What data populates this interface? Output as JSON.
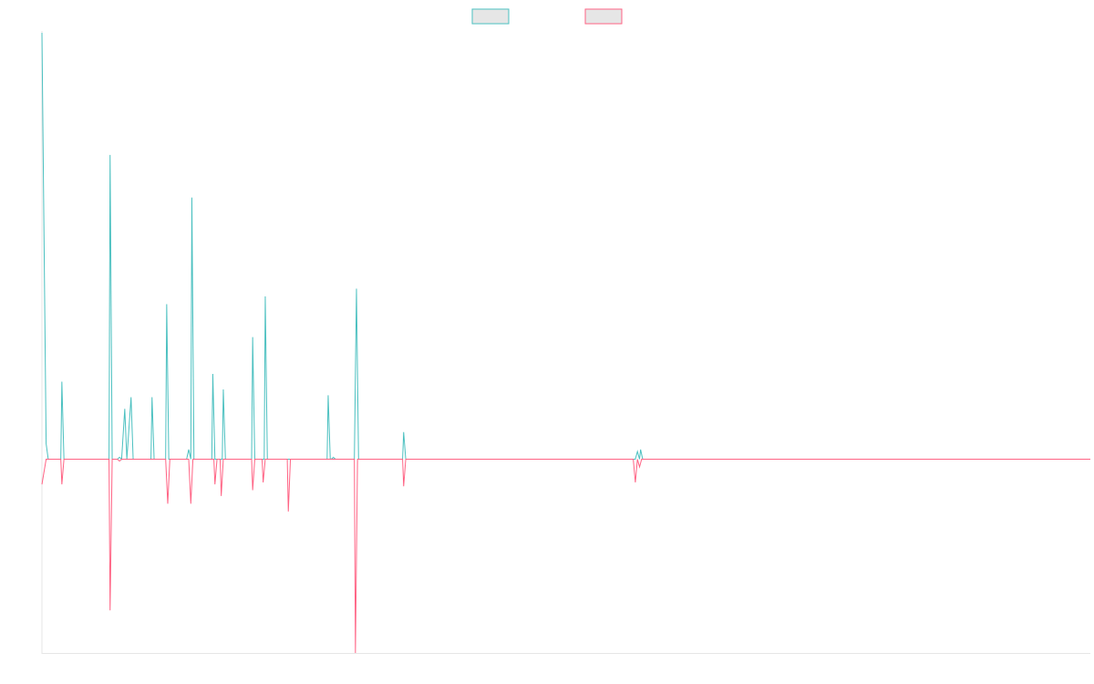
{
  "chart_data": {
    "type": "line",
    "title": "",
    "xlabel": "",
    "ylabel": "",
    "x_range": [
      0,
      500
    ],
    "ylim": [
      -100,
      220
    ],
    "grid": false,
    "legend_placement": "top-center",
    "series": [
      {
        "color": "#4bc0c0",
        "fill": "#e6e6e6",
        "points": [
          [
            0,
            220
          ],
          [
            2,
            8
          ],
          [
            3,
            0
          ],
          [
            9,
            0
          ],
          [
            9.5,
            40
          ],
          [
            10.5,
            0
          ],
          [
            32,
            0
          ],
          [
            32.5,
            157
          ],
          [
            33.5,
            0
          ],
          [
            36,
            0
          ],
          [
            37,
            1
          ],
          [
            38,
            0
          ],
          [
            39.5,
            26
          ],
          [
            40.5,
            0
          ],
          [
            42.5,
            32
          ],
          [
            43.5,
            0
          ],
          [
            52,
            0
          ],
          [
            52.5,
            32
          ],
          [
            53.5,
            0
          ],
          [
            59,
            0
          ],
          [
            59.5,
            80
          ],
          [
            60.5,
            0
          ],
          [
            65,
            0
          ],
          [
            66,
            0
          ],
          [
            69,
            0
          ],
          [
            70,
            5
          ],
          [
            71,
            0
          ],
          [
            71.5,
            135
          ],
          [
            72.5,
            0
          ],
          [
            75,
            0
          ],
          [
            76,
            0
          ],
          [
            77,
            0
          ],
          [
            81,
            0
          ],
          [
            81.5,
            44
          ],
          [
            82.5,
            0
          ],
          [
            86,
            0
          ],
          [
            86.5,
            36
          ],
          [
            87.5,
            0
          ],
          [
            90,
            0
          ],
          [
            91,
            0
          ],
          [
            100,
            0
          ],
          [
            100.5,
            63
          ],
          [
            101.5,
            0
          ],
          [
            106,
            0
          ],
          [
            106.5,
            84
          ],
          [
            107.5,
            0
          ],
          [
            136,
            0
          ],
          [
            136.5,
            33
          ],
          [
            137.5,
            0
          ],
          [
            138,
            0
          ],
          [
            139,
            1
          ],
          [
            140,
            0
          ],
          [
            141,
            0
          ],
          [
            149,
            0
          ],
          [
            150,
            88
          ],
          [
            151,
            0
          ],
          [
            172,
            0
          ],
          [
            172.5,
            14
          ],
          [
            173.5,
            0
          ],
          [
            283,
            0
          ],
          [
            284,
            4
          ],
          [
            285,
            0
          ],
          [
            285.5,
            5
          ],
          [
            286.5,
            0
          ],
          [
            291,
            0
          ],
          [
            292,
            0
          ],
          [
            500,
            0
          ]
        ]
      },
      {
        "color": "#ff6384",
        "fill": "#e6e6e6",
        "points": [
          [
            0,
            -13
          ],
          [
            2,
            0
          ],
          [
            9,
            0
          ],
          [
            9.5,
            -13
          ],
          [
            10.5,
            0
          ],
          [
            32,
            0
          ],
          [
            32.5,
            -78
          ],
          [
            33.5,
            0
          ],
          [
            36,
            0
          ],
          [
            37,
            -1
          ],
          [
            38,
            0
          ],
          [
            59,
            0
          ],
          [
            60,
            -23
          ],
          [
            61,
            0
          ],
          [
            70,
            0
          ],
          [
            71,
            -23
          ],
          [
            72,
            0
          ],
          [
            82,
            0
          ],
          [
            82.5,
            -13
          ],
          [
            83.5,
            0
          ],
          [
            85,
            0
          ],
          [
            85.5,
            -19
          ],
          [
            86.5,
            0
          ],
          [
            100,
            0
          ],
          [
            100.5,
            -16
          ],
          [
            101.5,
            0
          ],
          [
            105,
            0
          ],
          [
            105.5,
            -12
          ],
          [
            106.5,
            0
          ],
          [
            117,
            0
          ],
          [
            117.5,
            -27
          ],
          [
            118.5,
            0
          ],
          [
            149,
            0
          ],
          [
            149.5,
            -100
          ],
          [
            150.5,
            0
          ],
          [
            172,
            0
          ],
          [
            172.5,
            -14
          ],
          [
            173.5,
            0
          ],
          [
            282,
            0
          ],
          [
            283,
            -12
          ],
          [
            284,
            0
          ],
          [
            285,
            -4
          ],
          [
            286,
            0
          ],
          [
            500,
            0
          ]
        ]
      }
    ]
  }
}
